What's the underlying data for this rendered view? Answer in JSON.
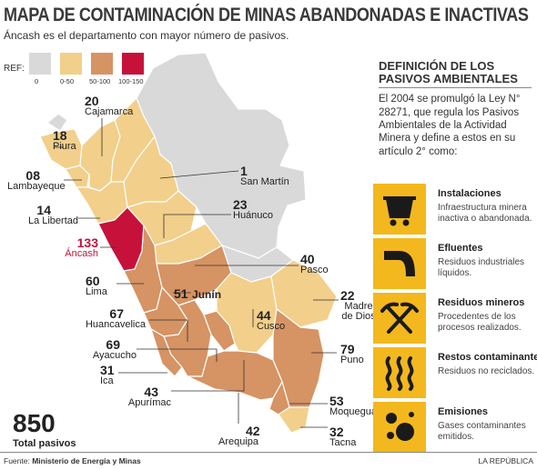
{
  "header": {
    "title": "MAPA DE CONTAMINACIÓN DE MINAS ABANDONADAS E INACTIVAS",
    "subtitle": "Áncash es el departamento con mayor número de pasivos."
  },
  "legend": {
    "label": "REF:",
    "items": [
      {
        "range": "0",
        "color": "#d9d9d9"
      },
      {
        "range": "0-50",
        "color": "#f2cf8a"
      },
      {
        "range": "50-100",
        "color": "#d69363"
      },
      {
        "range": "100-150",
        "color": "#c6123a"
      }
    ]
  },
  "regions": [
    {
      "count": "20",
      "name": "Cajamarca"
    },
    {
      "count": "18",
      "name": "Piura"
    },
    {
      "count": "08",
      "name": "Lambayeque"
    },
    {
      "count": "1",
      "name": "San Martín"
    },
    {
      "count": "14",
      "name": "La Libertad"
    },
    {
      "count": "23",
      "name": "Huánuco"
    },
    {
      "count": "133",
      "name": "Áncash"
    },
    {
      "count": "40",
      "name": "Pasco"
    },
    {
      "count": "60",
      "name": "Lima"
    },
    {
      "count": "51",
      "name": "Junín"
    },
    {
      "count": "22",
      "name": "Madre de Dios"
    },
    {
      "count": "67",
      "name": "Huancavelica"
    },
    {
      "count": "44",
      "name": "Cusco"
    },
    {
      "count": "69",
      "name": "Ayacucho"
    },
    {
      "count": "79",
      "name": "Puno"
    },
    {
      "count": "31",
      "name": "Ica"
    },
    {
      "count": "43",
      "name": "Apurímac"
    },
    {
      "count": "53",
      "name": "Moquegua"
    },
    {
      "count": "42",
      "name": "Arequipa"
    },
    {
      "count": "32",
      "name": "Tacna"
    }
  ],
  "total": {
    "value": "850",
    "label": "Total pasivos"
  },
  "panel": {
    "title": "DEFINICIÓN DE LOS PASIVOS AMBIENTALES",
    "intro": "El 2004 se promulgó la Ley N° 28271, que regula los Pasivos Ambientales de la Actividad Minera y define a estos en su artículo 2° como:",
    "definitions": [
      {
        "icon": "mine-cart-icon",
        "title": "Instalaciones",
        "text": "Infraestructura minera inactiva o abandonada."
      },
      {
        "icon": "pipe-outflow-icon",
        "title": "Efluentes",
        "text": "Residuos industriales líquidos."
      },
      {
        "icon": "crossed-pickaxes-icon",
        "title": "Residuos mineros",
        "text": "Procedentes de los procesos realizados."
      },
      {
        "icon": "steam-waves-icon",
        "title": "Restos contaminantes",
        "text": "Residuos no reciclados."
      },
      {
        "icon": "particles-icon",
        "title": "Emisiones",
        "text": "Gases contaminantes emitidos."
      }
    ]
  },
  "footer": {
    "source_prefix": "Fuente: ",
    "source": "Ministerio de Energía y Minas",
    "brand": "LA REPÚBLICA"
  }
}
